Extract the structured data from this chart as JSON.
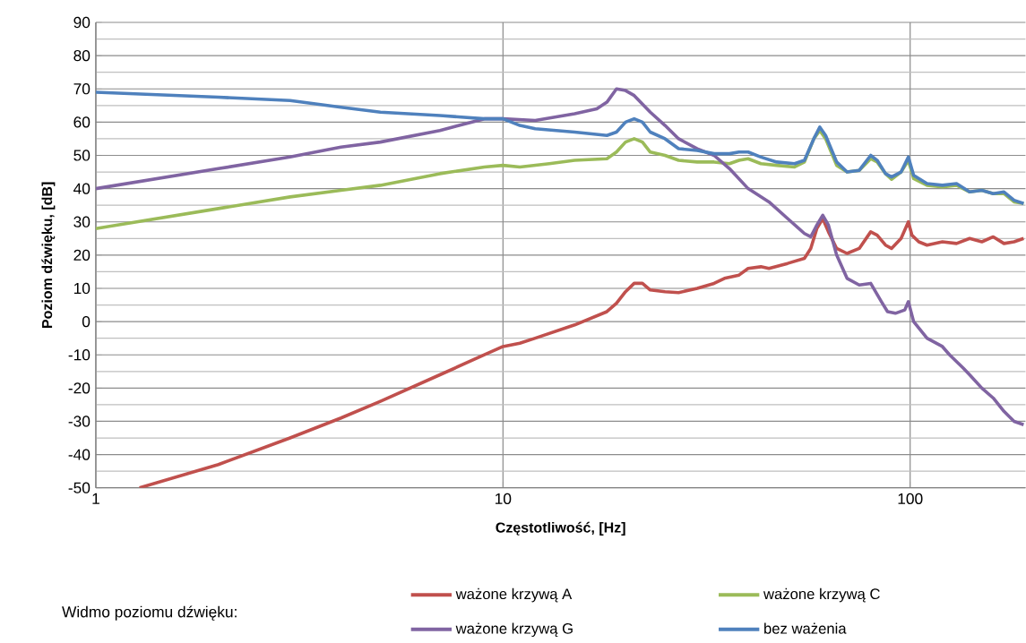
{
  "chart_data": {
    "type": "line",
    "xlabel": "Częstotliwość, [Hz]",
    "ylabel": "Poziom dźwięku, [dB]",
    "legend_title": "Widmo poziomu dźwięku:",
    "xlim": [
      1,
      192
    ],
    "ylim": [
      -50,
      90
    ],
    "xticks": [
      1,
      10,
      100
    ],
    "yticks": [
      -50,
      -40,
      -30,
      -20,
      -10,
      0,
      10,
      20,
      30,
      40,
      50,
      60,
      70,
      80,
      90
    ],
    "log": "x",
    "grid": true,
    "legend": "bottom",
    "line_style": "solid",
    "series": [
      {
        "name": "ważone krzywą A",
        "color": "#c0504d",
        "x": [
          1.28,
          2,
          3,
          4,
          5,
          7,
          9,
          10,
          11,
          12,
          15,
          18,
          19,
          20,
          21,
          22,
          23,
          25,
          27,
          30,
          33,
          35,
          38,
          40,
          43,
          45,
          50,
          55,
          57,
          59,
          61,
          63,
          66,
          70,
          75,
          80,
          83,
          87,
          90,
          95,
          99,
          101,
          105,
          110,
          120,
          130,
          140,
          150,
          160,
          170,
          180,
          190
        ],
        "values": [
          -50,
          -43,
          -35,
          -29,
          -24,
          -16,
          -10,
          -7.5,
          -6.5,
          -5,
          -1,
          3,
          5.5,
          9,
          11.5,
          11.5,
          9.5,
          9,
          8.7,
          10,
          11.5,
          13,
          14,
          16,
          16.5,
          16,
          17.5,
          19,
          22,
          28,
          31,
          27,
          22,
          20.5,
          22,
          27,
          26,
          23,
          22,
          25,
          30,
          26,
          24,
          23,
          24,
          23.5,
          25,
          24,
          25.5,
          23.5,
          24,
          25
        ]
      },
      {
        "name": "ważone krzywą C",
        "color": "#9bbb59",
        "x": [
          1,
          2,
          3,
          4,
          5,
          7,
          9,
          10,
          11,
          13,
          15,
          18,
          19,
          20,
          21,
          22,
          23,
          25,
          27,
          30,
          33,
          36,
          38,
          40,
          43,
          47,
          52,
          55,
          58,
          60,
          62,
          66,
          70,
          75,
          80,
          83,
          87,
          90,
          95,
          99,
          102,
          110,
          120,
          130,
          140,
          150,
          160,
          170,
          180,
          190
        ],
        "values": [
          28,
          34,
          37.5,
          39.5,
          41,
          44.5,
          46.5,
          47,
          46.5,
          47.5,
          48.5,
          49,
          51,
          54,
          55,
          54,
          51,
          50,
          48.5,
          48,
          48,
          47.5,
          48.5,
          49,
          47.5,
          47,
          46.5,
          48,
          55,
          57.5,
          55,
          47,
          45,
          45.5,
          49,
          48,
          44.5,
          42.8,
          45,
          48.5,
          43,
          41,
          40.5,
          41,
          39,
          39.5,
          38.5,
          38.5,
          36,
          35.5
        ]
      },
      {
        "name": "ważone krzywą G",
        "color": "#8064a2",
        "x": [
          1,
          2,
          3,
          4,
          5,
          7,
          9,
          10,
          12,
          15,
          17,
          18,
          19,
          20,
          21,
          23,
          25,
          27,
          30,
          33,
          36,
          40,
          45,
          50,
          55,
          57,
          59,
          61,
          63,
          66,
          70,
          75,
          80,
          85,
          88,
          92,
          97,
          99,
          102,
          110,
          120,
          125,
          135,
          140,
          150,
          160,
          170,
          180,
          190
        ],
        "values": [
          40,
          46,
          49.5,
          52.5,
          54,
          57.5,
          61,
          61,
          60.5,
          62.5,
          64,
          66,
          70,
          69.5,
          68,
          63,
          59,
          55,
          52,
          50,
          46,
          40,
          36,
          31,
          26.5,
          25.5,
          29,
          32,
          29,
          20,
          13,
          11,
          11.5,
          6,
          3,
          2.5,
          3.5,
          6,
          0,
          -5,
          -7.5,
          -10,
          -14,
          -16,
          -20,
          -23,
          -27,
          -30,
          -31
        ]
      },
      {
        "name": "bez ważenia",
        "color": "#4f81bd",
        "x": [
          1,
          2,
          3,
          4,
          5,
          7,
          9,
          10,
          11,
          12,
          15,
          18,
          19,
          20,
          21,
          22,
          23,
          25,
          27,
          30,
          33,
          36,
          38,
          40,
          43,
          47,
          52,
          55,
          58,
          60,
          62,
          66,
          70,
          75,
          80,
          83,
          87,
          90,
          95,
          99,
          102,
          110,
          120,
          130,
          140,
          150,
          160,
          170,
          180,
          190
        ],
        "values": [
          69,
          67.5,
          66.5,
          64.5,
          63,
          62,
          61,
          61,
          59,
          58,
          57,
          56,
          57,
          60,
          61,
          60,
          57,
          55,
          52,
          51.5,
          50.5,
          50.5,
          51,
          51,
          49.5,
          48,
          47.5,
          48.5,
          55,
          58.5,
          56,
          48,
          45,
          45.5,
          50,
          48.5,
          44.5,
          43.5,
          45,
          49.5,
          44,
          41.5,
          41,
          41.5,
          39,
          39.5,
          38.5,
          39,
          36.5,
          35.5
        ]
      }
    ]
  }
}
